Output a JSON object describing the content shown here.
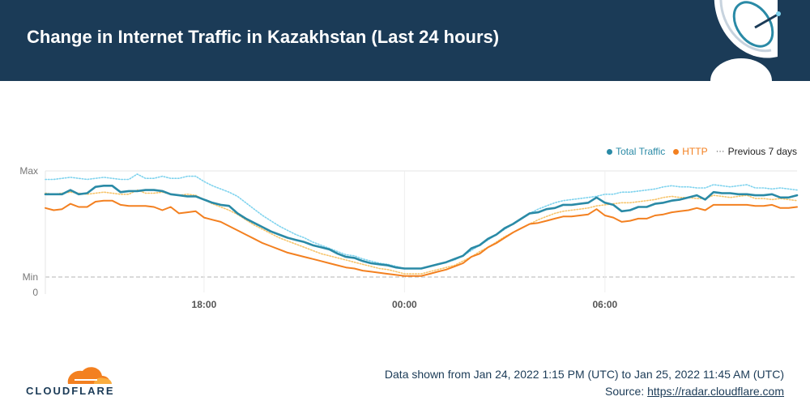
{
  "header": {
    "title": "Change in Internet Traffic in Kazakhstan (Last 24 hours)"
  },
  "legend": {
    "total": "Total Traffic",
    "http": "HTTP",
    "previous": "Previous 7 days",
    "previous_marker": "···"
  },
  "colors": {
    "header_bg": "#1b3b57",
    "total": "#2a8aa6",
    "http": "#f38020",
    "total_prev": "#7fd3ee",
    "http_prev": "#f7c46b",
    "cloudflare_orange": "#f38020"
  },
  "footer": {
    "range": "Data shown from Jan 24, 2022 1:15 PM (UTC) to Jan 25, 2022 11:45 AM (UTC)",
    "source_prefix": "Source: ",
    "source_link": "https://radar.cloudflare.com",
    "brand": "CLOUDFLARE"
  },
  "chart_data": {
    "type": "line",
    "x_ticks": [
      "18:00",
      "00:00",
      "06:00"
    ],
    "y_ticks": [
      "Max",
      "Min",
      "0"
    ],
    "y_scale": "relative (Min to Max)",
    "ylim": [
      0,
      1
    ],
    "grid": true,
    "legend_position": "top-right",
    "series": [
      {
        "name": "Total Traffic",
        "color": "#2a8aa6",
        "x": [
          "13:15",
          "13:30",
          "13:45",
          "14:00",
          "14:15",
          "14:30",
          "14:45",
          "15:00",
          "15:15",
          "15:30",
          "15:45",
          "16:00",
          "16:15",
          "16:30",
          "16:45",
          "17:00",
          "17:15",
          "17:30",
          "17:45",
          "18:00",
          "18:15",
          "18:30",
          "18:45",
          "19:00",
          "19:15",
          "19:30",
          "19:45",
          "20:00",
          "20:15",
          "20:30",
          "20:45",
          "21:00",
          "21:15",
          "21:30",
          "21:45",
          "22:00",
          "22:15",
          "22:30",
          "22:45",
          "23:00",
          "23:15",
          "23:30",
          "23:45",
          "00:00",
          "00:15",
          "00:30",
          "00:45",
          "01:00",
          "01:15",
          "01:30",
          "01:45",
          "02:00",
          "02:15",
          "02:30",
          "02:45",
          "03:00",
          "03:15",
          "03:30",
          "03:45",
          "04:00",
          "04:15",
          "04:30",
          "04:45",
          "05:00",
          "05:15",
          "05:30",
          "05:45",
          "06:00",
          "06:15",
          "06:30",
          "06:45",
          "07:00",
          "07:15",
          "07:30",
          "07:45",
          "08:00",
          "08:15",
          "08:30",
          "08:45",
          "09:00",
          "09:15",
          "09:30",
          "09:45",
          "10:00",
          "10:15",
          "10:30",
          "10:45",
          "11:00",
          "11:15",
          "11:30",
          "11:45"
        ],
        "y": [
          0.78,
          0.78,
          0.78,
          0.82,
          0.78,
          0.79,
          0.85,
          0.86,
          0.86,
          0.8,
          0.81,
          0.81,
          0.82,
          0.82,
          0.81,
          0.78,
          0.77,
          0.76,
          0.76,
          0.73,
          0.7,
          0.68,
          0.67,
          0.6,
          0.55,
          0.51,
          0.47,
          0.43,
          0.4,
          0.37,
          0.35,
          0.33,
          0.3,
          0.28,
          0.26,
          0.22,
          0.19,
          0.18,
          0.15,
          0.13,
          0.12,
          0.11,
          0.09,
          0.08,
          0.08,
          0.08,
          0.1,
          0.12,
          0.14,
          0.17,
          0.2,
          0.27,
          0.3,
          0.36,
          0.4,
          0.46,
          0.5,
          0.55,
          0.6,
          0.61,
          0.64,
          0.65,
          0.68,
          0.68,
          0.69,
          0.7,
          0.75,
          0.7,
          0.68,
          0.62,
          0.63,
          0.66,
          0.66,
          0.69,
          0.7,
          0.72,
          0.73,
          0.75,
          0.77,
          0.73,
          0.8,
          0.79,
          0.79,
          0.78,
          0.78,
          0.77,
          0.77,
          0.78,
          0.75,
          0.75,
          0.77
        ]
      },
      {
        "name": "HTTP",
        "color": "#f38020",
        "x": [
          "13:15",
          "13:30",
          "13:45",
          "14:00",
          "14:15",
          "14:30",
          "14:45",
          "15:00",
          "15:15",
          "15:30",
          "15:45",
          "16:00",
          "16:15",
          "16:30",
          "16:45",
          "17:00",
          "17:15",
          "17:30",
          "17:45",
          "18:00",
          "18:15",
          "18:30",
          "18:45",
          "19:00",
          "19:15",
          "19:30",
          "19:45",
          "20:00",
          "20:15",
          "20:30",
          "20:45",
          "21:00",
          "21:15",
          "21:30",
          "21:45",
          "22:00",
          "22:15",
          "22:30",
          "22:45",
          "23:00",
          "23:15",
          "23:30",
          "23:45",
          "00:00",
          "00:15",
          "00:30",
          "00:45",
          "01:00",
          "01:15",
          "01:30",
          "01:45",
          "02:00",
          "02:15",
          "02:30",
          "02:45",
          "03:00",
          "03:15",
          "03:30",
          "03:45",
          "04:00",
          "04:15",
          "04:30",
          "04:45",
          "05:00",
          "05:15",
          "05:30",
          "05:45",
          "06:00",
          "06:15",
          "06:30",
          "06:45",
          "07:00",
          "07:15",
          "07:30",
          "07:45",
          "08:00",
          "08:15",
          "08:30",
          "08:45",
          "09:00",
          "09:15",
          "09:30",
          "09:45",
          "10:00",
          "10:15",
          "10:30",
          "10:45",
          "11:00",
          "11:15",
          "11:30",
          "11:45"
        ],
        "y": [
          0.65,
          0.63,
          0.64,
          0.69,
          0.66,
          0.66,
          0.71,
          0.72,
          0.72,
          0.68,
          0.67,
          0.67,
          0.67,
          0.66,
          0.63,
          0.66,
          0.6,
          0.61,
          0.62,
          0.56,
          0.54,
          0.52,
          0.48,
          0.44,
          0.4,
          0.36,
          0.32,
          0.29,
          0.26,
          0.23,
          0.21,
          0.19,
          0.17,
          0.15,
          0.13,
          0.11,
          0.09,
          0.08,
          0.06,
          0.05,
          0.04,
          0.03,
          0.02,
          0.01,
          0.01,
          0.01,
          0.03,
          0.05,
          0.07,
          0.1,
          0.13,
          0.19,
          0.22,
          0.28,
          0.32,
          0.37,
          0.42,
          0.46,
          0.5,
          0.51,
          0.53,
          0.55,
          0.57,
          0.57,
          0.58,
          0.59,
          0.64,
          0.58,
          0.56,
          0.52,
          0.53,
          0.55,
          0.55,
          0.58,
          0.59,
          0.61,
          0.62,
          0.63,
          0.65,
          0.63,
          0.68,
          0.68,
          0.68,
          0.68,
          0.68,
          0.67,
          0.67,
          0.68,
          0.65,
          0.65,
          0.66
        ]
      },
      {
        "name": "Total Traffic (Previous 7 days)",
        "color": "#7fd3ee",
        "x": [
          "13:15",
          "13:30",
          "13:45",
          "14:00",
          "14:15",
          "14:30",
          "14:45",
          "15:00",
          "15:15",
          "15:30",
          "15:45",
          "16:00",
          "16:15",
          "16:30",
          "16:45",
          "17:00",
          "17:15",
          "17:30",
          "17:45",
          "18:00",
          "18:15",
          "18:30",
          "18:45",
          "19:00",
          "19:15",
          "19:30",
          "19:45",
          "20:00",
          "20:15",
          "20:30",
          "20:45",
          "21:00",
          "21:15",
          "21:30",
          "21:45",
          "22:00",
          "22:15",
          "22:30",
          "22:45",
          "23:00",
          "23:15",
          "23:30",
          "23:45",
          "00:00",
          "00:15",
          "00:30",
          "00:45",
          "01:00",
          "01:15",
          "01:30",
          "01:45",
          "02:00",
          "02:15",
          "02:30",
          "02:45",
          "03:00",
          "03:15",
          "03:30",
          "03:45",
          "04:00",
          "04:15",
          "04:30",
          "04:45",
          "05:00",
          "05:15",
          "05:30",
          "05:45",
          "06:00",
          "06:15",
          "06:30",
          "06:45",
          "07:00",
          "07:15",
          "07:30",
          "07:45",
          "08:00",
          "08:15",
          "08:30",
          "08:45",
          "09:00",
          "09:15",
          "09:30",
          "09:45",
          "10:00",
          "10:15",
          "10:30",
          "10:45",
          "11:00",
          "11:15",
          "11:30",
          "11:45"
        ],
        "y": [
          0.92,
          0.92,
          0.93,
          0.94,
          0.93,
          0.92,
          0.93,
          0.94,
          0.93,
          0.92,
          0.92,
          0.97,
          0.93,
          0.93,
          0.95,
          0.93,
          0.93,
          0.95,
          0.95,
          0.9,
          0.86,
          0.83,
          0.8,
          0.76,
          0.7,
          0.64,
          0.58,
          0.53,
          0.48,
          0.44,
          0.4,
          0.37,
          0.33,
          0.3,
          0.27,
          0.24,
          0.21,
          0.2,
          0.17,
          0.15,
          0.13,
          0.12,
          0.1,
          0.08,
          0.08,
          0.08,
          0.1,
          0.12,
          0.14,
          0.16,
          0.2,
          0.25,
          0.3,
          0.35,
          0.4,
          0.45,
          0.5,
          0.55,
          0.6,
          0.64,
          0.67,
          0.7,
          0.72,
          0.73,
          0.74,
          0.75,
          0.76,
          0.78,
          0.78,
          0.8,
          0.8,
          0.81,
          0.82,
          0.83,
          0.85,
          0.86,
          0.85,
          0.85,
          0.84,
          0.84,
          0.87,
          0.86,
          0.85,
          0.86,
          0.87,
          0.84,
          0.84,
          0.83,
          0.84,
          0.83,
          0.82
        ]
      },
      {
        "name": "HTTP (Previous 7 days)",
        "color": "#f7c46b",
        "x": [
          "13:15",
          "13:30",
          "13:45",
          "14:00",
          "14:15",
          "14:30",
          "14:45",
          "15:00",
          "15:15",
          "15:30",
          "15:45",
          "16:00",
          "16:15",
          "16:30",
          "16:45",
          "17:00",
          "17:15",
          "17:30",
          "17:45",
          "18:00",
          "18:15",
          "18:30",
          "18:45",
          "19:00",
          "19:15",
          "19:30",
          "19:45",
          "20:00",
          "20:15",
          "20:30",
          "20:45",
          "21:00",
          "21:15",
          "21:30",
          "21:45",
          "22:00",
          "22:15",
          "22:30",
          "22:45",
          "23:00",
          "23:15",
          "23:30",
          "23:45",
          "00:00",
          "00:15",
          "00:30",
          "00:45",
          "01:00",
          "01:15",
          "01:30",
          "01:45",
          "02:00",
          "02:15",
          "02:30",
          "02:45",
          "03:00",
          "03:15",
          "03:30",
          "03:45",
          "04:00",
          "04:15",
          "04:30",
          "04:45",
          "05:00",
          "05:15",
          "05:30",
          "05:45",
          "06:00",
          "06:15",
          "06:30",
          "06:45",
          "07:00",
          "07:15",
          "07:30",
          "07:45",
          "08:00",
          "08:15",
          "08:30",
          "08:45",
          "09:00",
          "09:15",
          "09:30",
          "09:45",
          "10:00",
          "10:15",
          "10:30",
          "10:45",
          "11:00",
          "11:15",
          "11:30",
          "11:45"
        ],
        "y": [
          0.79,
          0.78,
          0.79,
          0.8,
          0.79,
          0.78,
          0.79,
          0.8,
          0.79,
          0.78,
          0.78,
          0.82,
          0.79,
          0.79,
          0.8,
          0.78,
          0.77,
          0.78,
          0.77,
          0.73,
          0.69,
          0.66,
          0.63,
          0.59,
          0.54,
          0.49,
          0.45,
          0.41,
          0.37,
          0.34,
          0.31,
          0.28,
          0.25,
          0.22,
          0.2,
          0.18,
          0.16,
          0.14,
          0.12,
          0.1,
          0.08,
          0.07,
          0.05,
          0.03,
          0.03,
          0.03,
          0.05,
          0.07,
          0.09,
          0.11,
          0.15,
          0.19,
          0.24,
          0.28,
          0.33,
          0.38,
          0.42,
          0.46,
          0.5,
          0.54,
          0.57,
          0.6,
          0.62,
          0.63,
          0.64,
          0.65,
          0.67,
          0.68,
          0.69,
          0.7,
          0.7,
          0.71,
          0.72,
          0.73,
          0.75,
          0.76,
          0.75,
          0.75,
          0.74,
          0.74,
          0.77,
          0.76,
          0.75,
          0.76,
          0.77,
          0.74,
          0.74,
          0.73,
          0.74,
          0.73,
          0.72
        ]
      }
    ]
  }
}
